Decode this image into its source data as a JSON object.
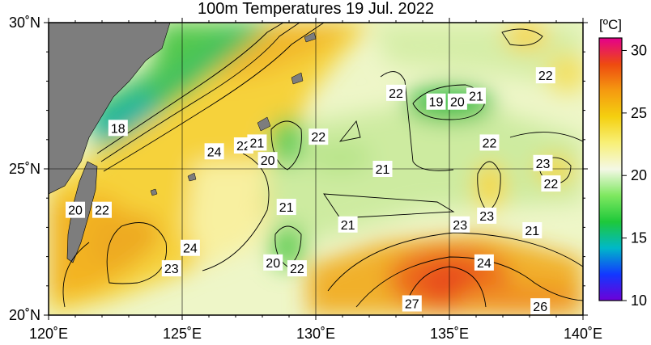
{
  "title": "100m Temperatures  19 Jul. 2022",
  "map": {
    "lon_range": [
      120,
      140
    ],
    "lat_range": [
      20,
      30
    ],
    "x_ticks": [
      {
        "value": 120,
        "label": "120˚E"
      },
      {
        "value": 125,
        "label": "125˚E"
      },
      {
        "value": 130,
        "label": "130˚E"
      },
      {
        "value": 135,
        "label": "135˚E"
      },
      {
        "value": 140,
        "label": "140˚E"
      }
    ],
    "y_ticks": [
      {
        "value": 20,
        "label": "20˚N"
      },
      {
        "value": 25,
        "label": "25˚N"
      },
      {
        "value": 30,
        "label": "30˚N"
      }
    ],
    "contour_labels": [
      {
        "lon": 122.6,
        "lat": 26.4,
        "text": "18"
      },
      {
        "lon": 121.0,
        "lat": 23.6,
        "text": "20"
      },
      {
        "lon": 122.0,
        "lat": 23.6,
        "text": "22"
      },
      {
        "lon": 126.2,
        "lat": 25.6,
        "text": "24"
      },
      {
        "lon": 127.3,
        "lat": 25.8,
        "text": "22"
      },
      {
        "lon": 127.8,
        "lat": 25.9,
        "text": "21"
      },
      {
        "lon": 128.2,
        "lat": 25.3,
        "text": "20"
      },
      {
        "lon": 130.1,
        "lat": 26.1,
        "text": "22"
      },
      {
        "lon": 133.0,
        "lat": 27.6,
        "text": "22"
      },
      {
        "lon": 134.5,
        "lat": 27.3,
        "text": "19"
      },
      {
        "lon": 135.3,
        "lat": 27.3,
        "text": "20"
      },
      {
        "lon": 136.0,
        "lat": 27.5,
        "text": "21"
      },
      {
        "lon": 138.6,
        "lat": 28.2,
        "text": "22"
      },
      {
        "lon": 136.5,
        "lat": 25.9,
        "text": "22"
      },
      {
        "lon": 132.5,
        "lat": 25.0,
        "text": "21"
      },
      {
        "lon": 138.5,
        "lat": 25.2,
        "text": "23"
      },
      {
        "lon": 138.8,
        "lat": 24.5,
        "text": "22"
      },
      {
        "lon": 128.9,
        "lat": 23.7,
        "text": "21"
      },
      {
        "lon": 131.2,
        "lat": 23.1,
        "text": "21"
      },
      {
        "lon": 135.4,
        "lat": 23.1,
        "text": "23"
      },
      {
        "lon": 136.4,
        "lat": 23.4,
        "text": "23"
      },
      {
        "lon": 138.1,
        "lat": 22.9,
        "text": "21"
      },
      {
        "lon": 125.3,
        "lat": 22.3,
        "text": "24"
      },
      {
        "lon": 124.6,
        "lat": 21.6,
        "text": "23"
      },
      {
        "lon": 128.4,
        "lat": 21.8,
        "text": "20"
      },
      {
        "lon": 129.3,
        "lat": 21.6,
        "text": "22"
      },
      {
        "lon": 136.3,
        "lat": 21.8,
        "text": "24"
      },
      {
        "lon": 133.6,
        "lat": 20.4,
        "text": "27"
      },
      {
        "lon": 138.4,
        "lat": 20.3,
        "text": "26"
      }
    ]
  },
  "colorbar": {
    "unit": "[ºC]",
    "min": 10,
    "max": 31,
    "ticks": [
      "30",
      "25",
      "20",
      "15",
      "10"
    ],
    "tick_values": [
      30,
      25,
      20,
      15,
      10
    ],
    "stops": [
      "#6e00d8",
      "#1238ff",
      "#00b8c8",
      "#1ec83a",
      "#7ee860",
      "#f4f8e6",
      "#f8f078",
      "#f4d010",
      "#f59a10",
      "#ee4a10",
      "#e4008c"
    ]
  },
  "colors": {
    "land": "#7d7d7d",
    "warm_sea": "#f3c431",
    "cool_sea": "#c8eb9a",
    "green_sea": "#3fc24a"
  }
}
